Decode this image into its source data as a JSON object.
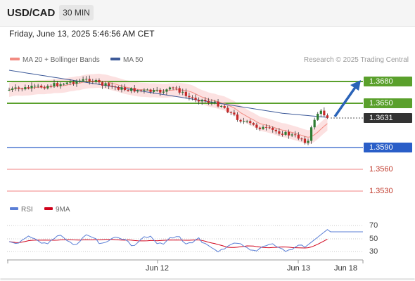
{
  "header": {
    "pair": "USD/CAD",
    "timeframe": "30 MIN"
  },
  "datetime": "Friday, June 13, 2025 5:46:56 AM CET",
  "legend": {
    "ma20": "MA 20 + Bollinger Bands",
    "ma50": "MA 50",
    "ma20_color": "#f28b82",
    "ma50_color": "#3d5a99"
  },
  "credit": "Research © 2025 Trading Central",
  "price_levels": {
    "r2": "1.3680",
    "r1": "1.3650",
    "current": "1.3631",
    "pivot": "1.3590",
    "s1": "1.3560",
    "s2": "1.3530"
  },
  "colors": {
    "resistance": "#5aa02c",
    "pivot": "#2a5ec8",
    "support": "#e06060",
    "current": "#333333",
    "bull": "#2e7d32",
    "bear": "#c62828",
    "arrow": "#2a63b8"
  },
  "rsi_legend": {
    "rsi": "RSI",
    "ma9": "9MA",
    "rsi_color": "#5b7fd6",
    "ma9_color": "#d0021b"
  },
  "rsi_levels": [
    "70",
    "50",
    "30"
  ],
  "x_axis": [
    "Jun 12",
    "Jun 13",
    "Jun 18"
  ]
}
